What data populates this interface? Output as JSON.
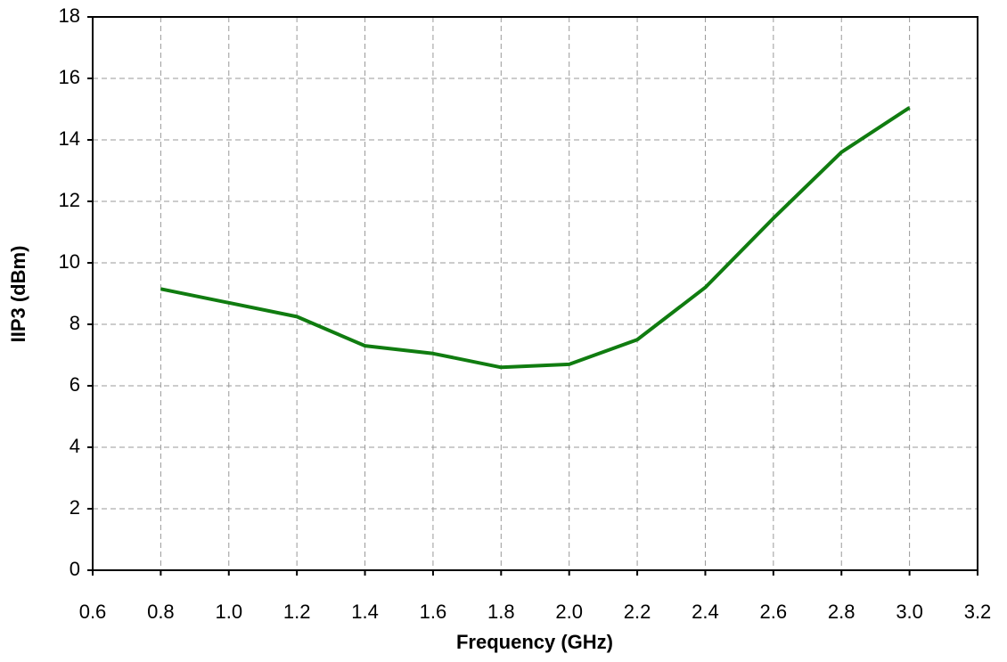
{
  "chart_data": {
    "type": "line",
    "xlabel": "Frequency (GHz)",
    "ylabel": "IIP3 (dBm)",
    "x": [
      0.8,
      1.0,
      1.2,
      1.4,
      1.6,
      1.8,
      2.0,
      2.2,
      2.4,
      2.6,
      2.8,
      3.0
    ],
    "series": [
      {
        "color": "#107c10",
        "values": [
          9.15,
          8.7,
          8.25,
          7.3,
          7.05,
          6.6,
          6.7,
          7.5,
          9.2,
          11.45,
          13.6,
          15.05
        ]
      }
    ],
    "xlim": [
      0.6,
      3.2
    ],
    "xticks": [
      0.6,
      0.8,
      {
        "value": 1,
        "label": "1.0"
      },
      1.2,
      1.4,
      1.6,
      1.8,
      {
        "value": 2,
        "label": "2.0"
      },
      2.2,
      2.4,
      2.6,
      2.8,
      {
        "value": 3,
        "label": "3.0"
      },
      3.2
    ],
    "ylim": [
      0,
      18
    ],
    "yticks": [
      0,
      2,
      4,
      6,
      8,
      10,
      12,
      14,
      16,
      18
    ],
    "grid": true
  }
}
